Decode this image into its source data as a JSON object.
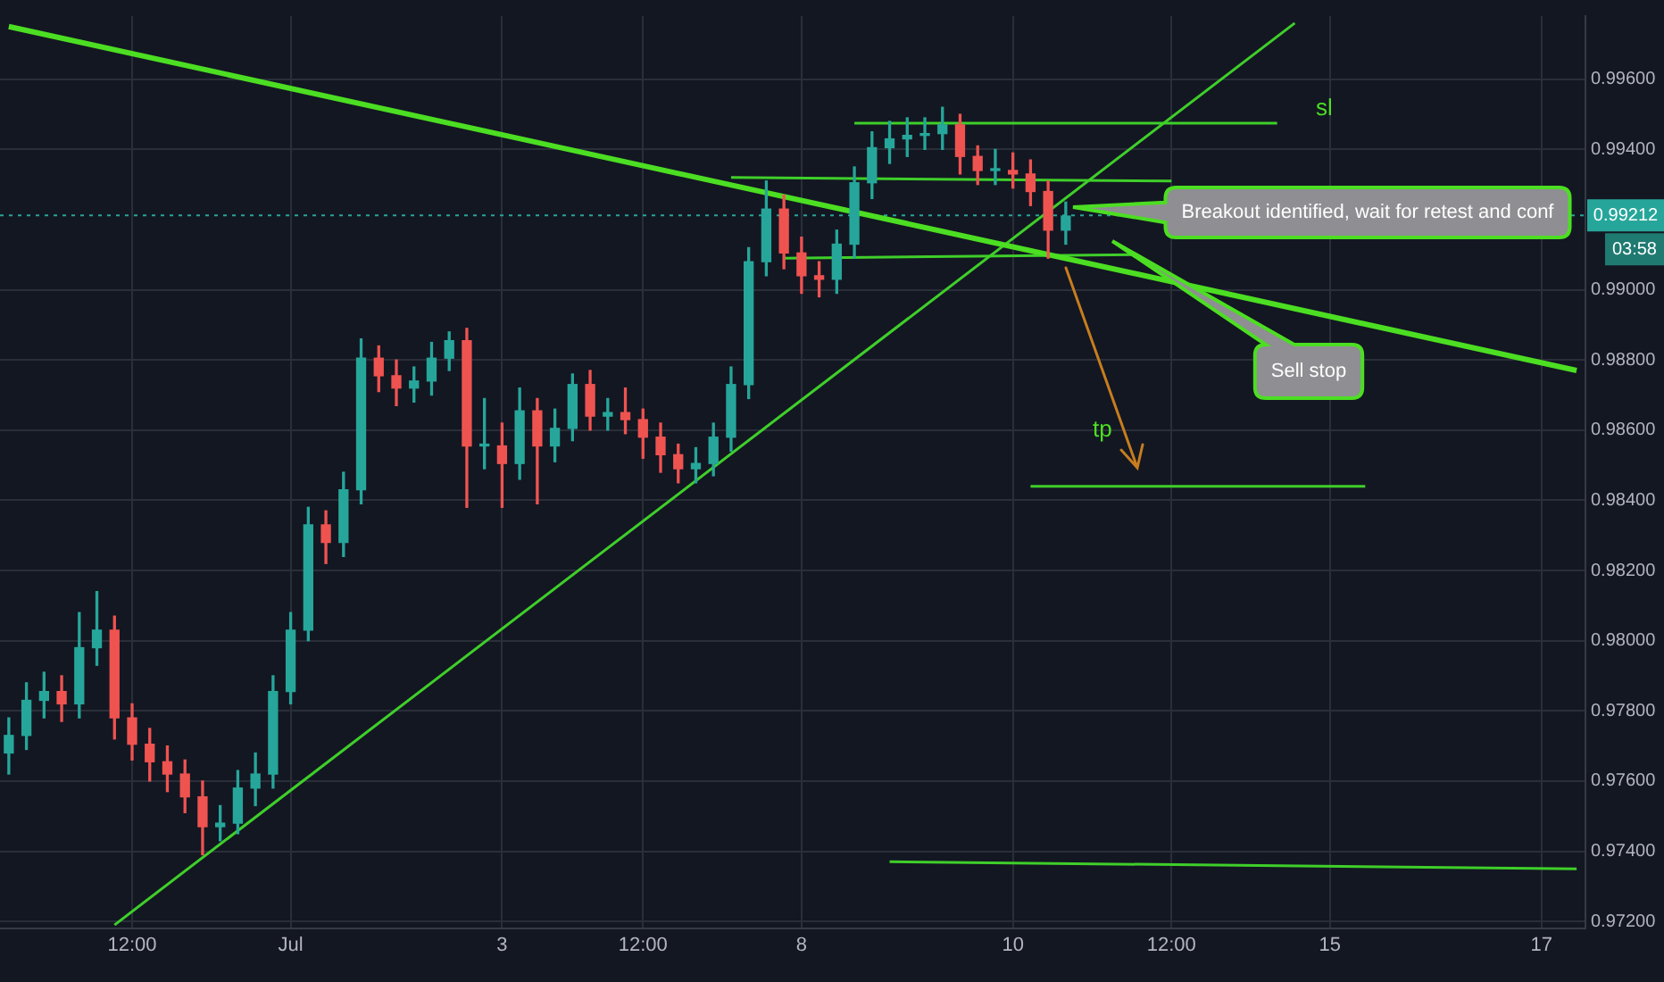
{
  "chart_data": {
    "type": "candlestick",
    "categories": [
      null,
      null,
      null,
      null,
      null,
      null,
      null,
      "12:00",
      null,
      null,
      null,
      null,
      null,
      null,
      null,
      null,
      "Jul",
      null,
      null,
      null,
      null,
      null,
      null,
      null,
      null,
      null,
      null,
      null,
      "3",
      null,
      null,
      null,
      null,
      null,
      null,
      null,
      "12:00",
      null,
      null,
      null,
      null,
      null,
      null,
      null,
      null,
      "8",
      null,
      null,
      null,
      null,
      null,
      null,
      null,
      null,
      null,
      null,
      null,
      "10",
      null,
      null,
      null,
      null,
      null,
      null,
      null,
      null,
      "12:00",
      null,
      null,
      null,
      null,
      null,
      null,
      null,
      null,
      "15",
      null,
      null,
      null,
      null,
      null,
      null,
      null,
      null,
      null,
      null,
      null,
      "17",
      null,
      null
    ],
    "ohlc": [
      [
        0.9768,
        0.9778,
        0.9762,
        0.9773
      ],
      [
        0.9773,
        0.9788,
        0.9769,
        0.9783
      ],
      [
        0.9783,
        0.9791,
        0.9778,
        0.97855
      ],
      [
        0.97855,
        0.979,
        0.9777,
        0.9782
      ],
      [
        0.9782,
        0.9808,
        0.9778,
        0.9798
      ],
      [
        0.9798,
        0.9814,
        0.9793,
        0.9803
      ],
      [
        0.9803,
        0.9807,
        0.9772,
        0.9778
      ],
      [
        0.9778,
        0.9782,
        0.9766,
        0.97705
      ],
      [
        0.97705,
        0.9775,
        0.976,
        0.97655
      ],
      [
        0.97655,
        0.977,
        0.9757,
        0.9762
      ],
      [
        0.9762,
        0.9766,
        0.9751,
        0.97555
      ],
      [
        0.97555,
        0.976,
        0.9739,
        0.9747
      ],
      [
        0.9747,
        0.9753,
        0.9743,
        0.9748
      ],
      [
        0.9748,
        0.9763,
        0.9745,
        0.9758
      ],
      [
        0.9758,
        0.9768,
        0.9753,
        0.9762
      ],
      [
        0.9762,
        0.979,
        0.9758,
        0.97855
      ],
      [
        0.97855,
        0.9808,
        0.9782,
        0.9803
      ],
      [
        0.9803,
        0.9838,
        0.98,
        0.9833
      ],
      [
        0.9833,
        0.9837,
        0.9822,
        0.9828
      ],
      [
        0.9828,
        0.9848,
        0.9824,
        0.9843
      ],
      [
        0.9843,
        0.9886,
        0.9839,
        0.98805
      ],
      [
        0.98805,
        0.9884,
        0.9871,
        0.98755
      ],
      [
        0.98755,
        0.988,
        0.9867,
        0.9872
      ],
      [
        0.9872,
        0.9878,
        0.9868,
        0.9874
      ],
      [
        0.9874,
        0.9885,
        0.987,
        0.98805
      ],
      [
        0.98805,
        0.9888,
        0.9877,
        0.98855
      ],
      [
        0.98855,
        0.9889,
        0.9838,
        0.98555
      ],
      [
        0.98555,
        0.9869,
        0.9849,
        0.98555
      ],
      [
        0.98555,
        0.9862,
        0.9838,
        0.98505
      ],
      [
        0.98505,
        0.9872,
        0.9846,
        0.98655
      ],
      [
        0.98655,
        0.9869,
        0.9839,
        0.98555
      ],
      [
        0.98555,
        0.9866,
        0.9851,
        0.98605
      ],
      [
        0.98605,
        0.9876,
        0.9857,
        0.9873
      ],
      [
        0.9873,
        0.9877,
        0.986,
        0.9864
      ],
      [
        0.9864,
        0.9869,
        0.986,
        0.9865
      ],
      [
        0.9865,
        0.9872,
        0.9859,
        0.9863
      ],
      [
        0.9863,
        0.9866,
        0.9852,
        0.9858
      ],
      [
        0.9858,
        0.9862,
        0.9848,
        0.9853
      ],
      [
        0.9853,
        0.9856,
        0.9845,
        0.9849
      ],
      [
        0.9849,
        0.9855,
        0.9845,
        0.98505
      ],
      [
        0.98505,
        0.9862,
        0.9847,
        0.9858
      ],
      [
        0.9858,
        0.9878,
        0.9854,
        0.9873
      ],
      [
        0.9873,
        0.9912,
        0.9869,
        0.9908
      ],
      [
        0.9908,
        0.9931,
        0.9904,
        0.9923
      ],
      [
        0.9923,
        0.9927,
        0.9906,
        0.99105
      ],
      [
        0.99105,
        0.9915,
        0.9899,
        0.9904
      ],
      [
        0.9904,
        0.9908,
        0.9898,
        0.9903
      ],
      [
        0.9903,
        0.9917,
        0.9899,
        0.9913
      ],
      [
        0.9913,
        0.9935,
        0.9909,
        0.99305
      ],
      [
        0.99305,
        0.9945,
        0.9926,
        0.99405
      ],
      [
        0.99405,
        0.9948,
        0.9936,
        0.9943
      ],
      [
        0.9943,
        0.9949,
        0.9938,
        0.9944
      ],
      [
        0.9944,
        0.9949,
        0.994,
        0.99445
      ],
      [
        0.99445,
        0.9952,
        0.994,
        0.9947
      ],
      [
        0.9947,
        0.995,
        0.9933,
        0.9938
      ],
      [
        0.9938,
        0.9941,
        0.993,
        0.9934
      ],
      [
        0.9934,
        0.994,
        0.993,
        0.9934
      ],
      [
        0.9934,
        0.9939,
        0.9929,
        0.9933
      ],
      [
        0.9933,
        0.9937,
        0.9924,
        0.9928
      ],
      [
        0.9928,
        0.9931,
        0.9909,
        0.9917
      ],
      [
        0.9917,
        0.9925,
        0.9913,
        0.9921
      ],
      null,
      null,
      null,
      null,
      null,
      null,
      null,
      null,
      null,
      null,
      null,
      null,
      null,
      null,
      null,
      null,
      null,
      null,
      null,
      null,
      null,
      null,
      null,
      null,
      null,
      null,
      null,
      null,
      null
    ],
    "series": [
      {
        "type": "line",
        "color": "#4cde22",
        "values": [
          0.9975,
          null,
          null,
          null,
          null,
          null,
          null,
          null,
          null,
          null,
          null,
          null,
          null,
          null,
          null,
          null,
          null,
          null,
          null,
          null,
          null,
          null,
          null,
          null,
          null,
          null,
          null,
          null,
          null,
          null,
          null,
          null,
          null,
          null,
          null,
          null,
          null,
          null,
          null,
          null,
          null,
          null,
          null,
          null,
          null,
          null,
          null,
          null,
          null,
          null,
          null,
          null,
          null,
          null,
          null,
          null,
          null,
          null,
          null,
          null,
          null,
          null,
          null,
          null,
          null,
          null,
          null,
          null,
          null,
          null,
          null,
          null,
          null,
          null,
          null,
          null,
          null,
          null,
          null,
          null,
          null,
          null,
          null,
          null,
          null,
          null,
          null,
          null,
          null,
          0.9877
        ]
      },
      {
        "type": "line",
        "color": "#3fcf2a",
        "values": [
          null,
          null,
          null,
          null,
          null,
          null,
          0.9719,
          null,
          null,
          null,
          null,
          null,
          null,
          null,
          null,
          null,
          null,
          null,
          null,
          null,
          null,
          null,
          null,
          null,
          null,
          null,
          null,
          null,
          null,
          null,
          null,
          null,
          null,
          null,
          null,
          null,
          null,
          null,
          null,
          null,
          null,
          null,
          null,
          null,
          null,
          null,
          null,
          null,
          null,
          null,
          null,
          null,
          null,
          null,
          null,
          null,
          null,
          null,
          null,
          null,
          null,
          null,
          null,
          null,
          null,
          null,
          null,
          null,
          null,
          null,
          null,
          null,
          null,
          0.9976,
          null,
          null,
          null,
          null,
          null,
          null,
          null,
          null,
          null,
          null,
          null,
          null,
          null,
          null,
          null,
          null
        ]
      },
      {
        "type": "line",
        "color": "#3fcf2a",
        "values": [
          null,
          null,
          null,
          null,
          null,
          null,
          null,
          null,
          null,
          null,
          null,
          null,
          null,
          null,
          null,
          null,
          null,
          null,
          null,
          null,
          null,
          null,
          null,
          null,
          null,
          null,
          null,
          null,
          null,
          null,
          null,
          null,
          null,
          null,
          null,
          null,
          null,
          null,
          null,
          null,
          null,
          null,
          null,
          null,
          null,
          null,
          null,
          null,
          0.99475,
          null,
          null,
          null,
          null,
          null,
          null,
          null,
          null,
          null,
          null,
          null,
          null,
          null,
          null,
          null,
          null,
          null,
          null,
          null,
          null,
          null,
          null,
          null,
          0.99475,
          null,
          null,
          null,
          null,
          null,
          null,
          null,
          null,
          null,
          null,
          null,
          null,
          null,
          null,
          null,
          null,
          null
        ]
      },
      {
        "type": "line",
        "color": "#3fcf2a",
        "values": [
          null,
          null,
          null,
          null,
          null,
          null,
          null,
          null,
          null,
          null,
          null,
          null,
          null,
          null,
          null,
          null,
          null,
          null,
          null,
          null,
          null,
          null,
          null,
          null,
          null,
          null,
          null,
          null,
          null,
          null,
          null,
          null,
          null,
          null,
          null,
          null,
          null,
          null,
          null,
          null,
          null,
          0.9932,
          null,
          null,
          null,
          null,
          null,
          null,
          null,
          null,
          null,
          null,
          null,
          null,
          null,
          null,
          null,
          null,
          null,
          null,
          null,
          null,
          null,
          null,
          null,
          null,
          0.9931,
          null,
          null,
          null,
          null,
          null,
          null,
          null,
          null,
          null,
          null,
          null,
          null,
          null,
          null,
          null,
          null,
          null,
          null,
          null,
          null,
          null,
          null,
          null
        ]
      },
      {
        "type": "line",
        "color": "#3fcf2a",
        "values": [
          null,
          null,
          null,
          null,
          null,
          null,
          null,
          null,
          null,
          null,
          null,
          null,
          null,
          null,
          null,
          null,
          null,
          null,
          null,
          null,
          null,
          null,
          null,
          null,
          null,
          null,
          null,
          null,
          null,
          null,
          null,
          null,
          null,
          null,
          null,
          null,
          null,
          null,
          null,
          null,
          null,
          null,
          null,
          null,
          0.9909,
          null,
          null,
          null,
          null,
          null,
          null,
          null,
          null,
          null,
          null,
          null,
          null,
          null,
          null,
          null,
          null,
          null,
          null,
          null,
          0.991,
          null,
          null,
          null,
          null,
          null,
          null,
          null,
          null,
          null,
          null,
          null,
          null,
          null,
          null,
          null,
          null,
          null,
          null,
          null,
          null,
          null,
          null,
          null,
          null,
          null
        ]
      },
      {
        "type": "line",
        "color": "#3fcf2a",
        "values": [
          null,
          null,
          null,
          null,
          null,
          null,
          null,
          null,
          null,
          null,
          null,
          null,
          null,
          null,
          null,
          null,
          null,
          null,
          null,
          null,
          null,
          null,
          null,
          null,
          null,
          null,
          null,
          null,
          null,
          null,
          null,
          null,
          null,
          null,
          null,
          null,
          null,
          null,
          null,
          null,
          null,
          null,
          null,
          null,
          null,
          null,
          null,
          null,
          null,
          null,
          null,
          null,
          null,
          null,
          null,
          null,
          null,
          null,
          0.9844,
          null,
          null,
          null,
          null,
          null,
          null,
          null,
          null,
          null,
          null,
          null,
          null,
          null,
          null,
          null,
          null,
          null,
          null,
          0.9844,
          null,
          null,
          null,
          null,
          null,
          null,
          null,
          null,
          null,
          null,
          null,
          null
        ]
      },
      {
        "type": "line",
        "color": "#3fcf2a",
        "values": [
          null,
          null,
          null,
          null,
          null,
          null,
          null,
          null,
          null,
          null,
          null,
          null,
          null,
          null,
          null,
          null,
          null,
          null,
          null,
          null,
          null,
          null,
          null,
          null,
          null,
          null,
          null,
          null,
          null,
          null,
          null,
          null,
          null,
          null,
          null,
          null,
          null,
          null,
          null,
          null,
          null,
          null,
          null,
          null,
          null,
          null,
          null,
          null,
          null,
          null,
          0.9737,
          null,
          null,
          null,
          null,
          null,
          null,
          null,
          null,
          null,
          null,
          null,
          null,
          null,
          null,
          null,
          null,
          null,
          null,
          null,
          null,
          null,
          null,
          null,
          null,
          null,
          null,
          null,
          null,
          null,
          null,
          null,
          null,
          null,
          null,
          null,
          null,
          null,
          null,
          0.9735
        ]
      }
    ],
    "ylim": [
      0.9718,
      0.9978
    ],
    "yticks": [
      {
        "value": 0.972,
        "label": "0.97200"
      },
      {
        "value": 0.974,
        "label": "0.97400"
      },
      {
        "value": 0.976,
        "label": "0.97600"
      },
      {
        "value": 0.978,
        "label": "0.97800"
      },
      {
        "value": 0.98,
        "label": "0.98000"
      },
      {
        "value": 0.982,
        "label": "0.98200"
      },
      {
        "value": 0.984,
        "label": "0.98400"
      },
      {
        "value": 0.986,
        "label": "0.98600"
      },
      {
        "value": 0.988,
        "label": "0.98800"
      },
      {
        "value": 0.99,
        "label": "0.99000"
      },
      {
        "value": 0.994,
        "label": "0.99400"
      },
      {
        "value": 0.996,
        "label": "0.99600"
      }
    ],
    "grid": true,
    "legend": false,
    "marker": "none",
    "line_style": "solid",
    "ref_lines": [
      {
        "axis": "y",
        "value": 0.99212,
        "label": "0.99212",
        "color": "#26a69a",
        "line_style": "dotted"
      }
    ],
    "annotations": [
      "Breakout identified, wait for retest and conf",
      "Sell stop",
      "sl",
      "tp",
      "03:58"
    ]
  }
}
